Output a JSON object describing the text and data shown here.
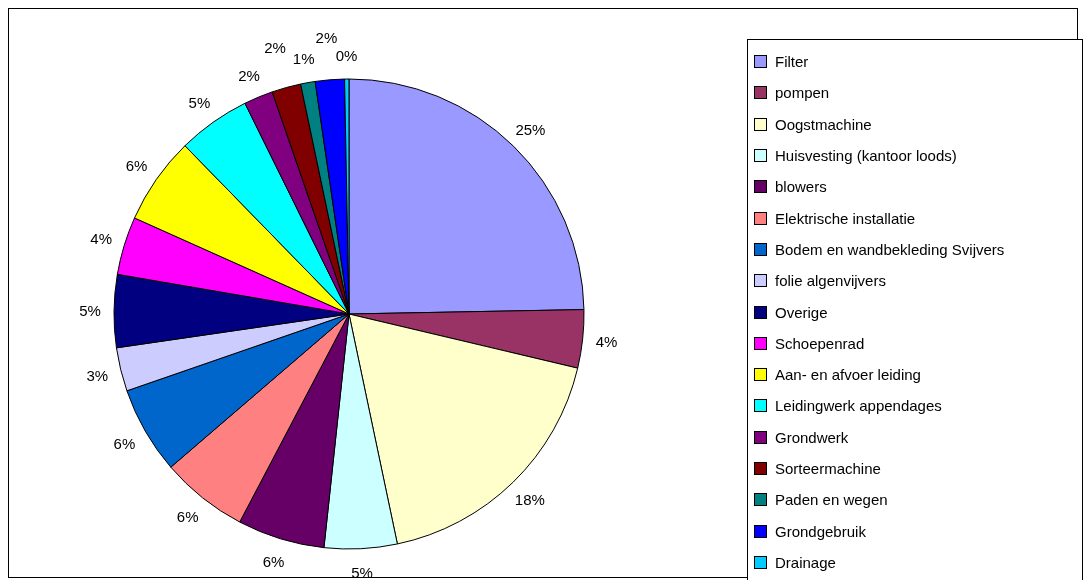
{
  "chart_data": {
    "type": "pie",
    "categories": [
      "Filter",
      "pompen",
      "Oogstmachine",
      "Huisvesting (kantoor  loods)",
      "blowers",
      "Elektrische installatie",
      "Bodem en wandbekleding Svijvers",
      "folie algenvijvers",
      "Overige",
      "Schoepenrad",
      "Aan- en afvoer leiding",
      "Leidingwerk  appendages",
      "Grondwerk",
      "Sorteermachine",
      "Paden en wegen",
      "Grondgebruik",
      "Drainage"
    ],
    "values": [
      24.7,
      4,
      18,
      5,
      6,
      6,
      6,
      3,
      5,
      4,
      6,
      5,
      2,
      2,
      1,
      2,
      0.3
    ],
    "value_labels": [
      "25%",
      "4%",
      "18%",
      "5%",
      "6%",
      "6%",
      "6%",
      "3%",
      "5%",
      "4%",
      "6%",
      "5%",
      "2%",
      "2%",
      "1%",
      "2%",
      "0%"
    ],
    "colors": [
      "#9999ff",
      "#993366",
      "#ffffcc",
      "#ccffff",
      "#660066",
      "#ff8080",
      "#0066cc",
      "#ccccff",
      "#000080",
      "#ff00ff",
      "#ffff00",
      "#00ffff",
      "#800080",
      "#800000",
      "#008080",
      "#0000ff",
      "#00ccff"
    ],
    "legend": "right"
  }
}
